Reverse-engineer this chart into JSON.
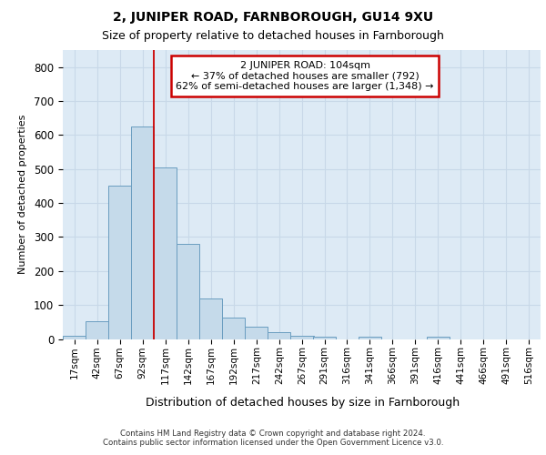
{
  "title1": "2, JUNIPER ROAD, FARNBOROUGH, GU14 9XU",
  "title2": "Size of property relative to detached houses in Farnborough",
  "xlabel": "Distribution of detached houses by size in Farnborough",
  "ylabel": "Number of detached properties",
  "footer1": "Contains HM Land Registry data © Crown copyright and database right 2024.",
  "footer2": "Contains public sector information licensed under the Open Government Licence v3.0.",
  "annotation_line1": "2 JUNIPER ROAD: 104sqm",
  "annotation_line2": "← 37% of detached houses are smaller (792)",
  "annotation_line3": "62% of semi-detached houses are larger (1,348) →",
  "bar_color": "#c5daea",
  "bar_edge_color": "#6a9dc0",
  "grid_color": "#c8d8e8",
  "bg_color": "#ddeaf5",
  "redline_color": "#cc0000",
  "redline_x": 104,
  "categories": [
    "17sqm",
    "42sqm",
    "67sqm",
    "92sqm",
    "117sqm",
    "142sqm",
    "167sqm",
    "192sqm",
    "217sqm",
    "242sqm",
    "267sqm",
    "291sqm",
    "316sqm",
    "341sqm",
    "366sqm",
    "391sqm",
    "416sqm",
    "441sqm",
    "466sqm",
    "491sqm",
    "516sqm"
  ],
  "bin_edges": [
    4.5,
    29.5,
    54.5,
    79.5,
    104.5,
    129.5,
    154.5,
    179.5,
    204.5,
    229.5,
    254.5,
    279.5,
    303.5,
    328.5,
    353.5,
    378.5,
    403.5,
    428.5,
    453.5,
    478.5,
    503.5,
    528.5
  ],
  "values": [
    10,
    52,
    450,
    625,
    505,
    280,
    118,
    63,
    35,
    20,
    10,
    8,
    0,
    8,
    0,
    0,
    8,
    0,
    0,
    0,
    0
  ],
  "ylim": [
    0,
    850
  ],
  "yticks": [
    0,
    100,
    200,
    300,
    400,
    500,
    600,
    700,
    800
  ],
  "ann_box_fc": "white",
  "ann_box_ec": "#cc0000"
}
